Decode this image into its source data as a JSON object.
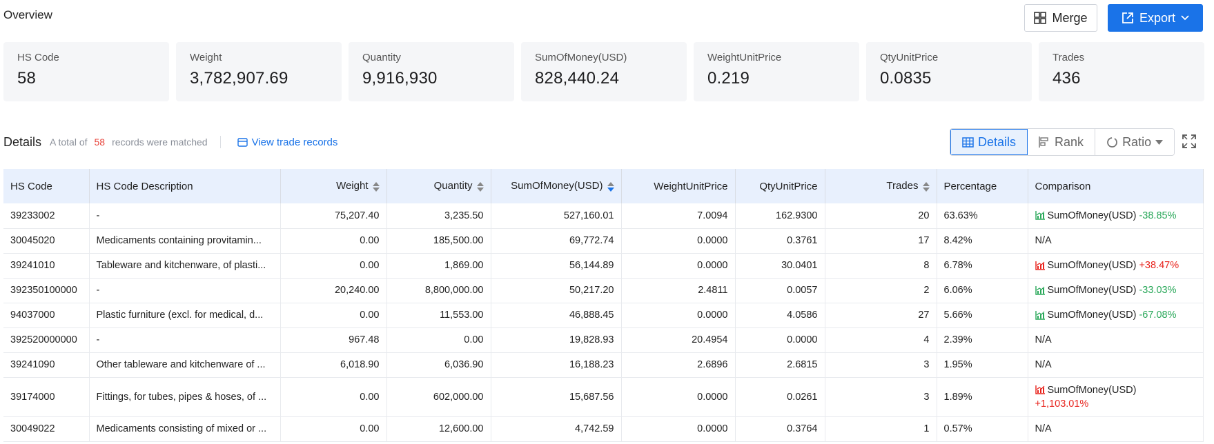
{
  "header": {
    "title": "Overview",
    "merge_label": "Merge",
    "export_label": "Export"
  },
  "stats": [
    {
      "label": "HS Code",
      "value": "58"
    },
    {
      "label": "Weight",
      "value": "3,782,907.69"
    },
    {
      "label": "Quantity",
      "value": "9,916,930"
    },
    {
      "label": "SumOfMoney(USD)",
      "value": "828,440.24"
    },
    {
      "label": "WeightUnitPrice",
      "value": "0.219"
    },
    {
      "label": "QtyUnitPrice",
      "value": "0.0835"
    },
    {
      "label": "Trades",
      "value": "436"
    }
  ],
  "details": {
    "title": "Details",
    "total_prefix": "A total of",
    "total_count": "58",
    "total_suffix": "records were matched",
    "view_link": "View trade records",
    "views": {
      "details": "Details",
      "rank": "Rank",
      "ratio": "Ratio"
    }
  },
  "colors": {
    "accent": "#1a73e8",
    "up": "#e8231c",
    "down": "#2aa85a",
    "header_bg": "#e8f0fd"
  },
  "table": {
    "columns": {
      "hs_code": "HS Code",
      "desc": "HS Code Description",
      "weight": "Weight",
      "quantity": "Quantity",
      "money": "SumOfMoney(USD)",
      "wup": "WeightUnitPrice",
      "qup": "QtyUnitPrice",
      "trades": "Trades",
      "pct": "Percentage",
      "cmp": "Comparison"
    },
    "rows": [
      {
        "hs_code": "39233002",
        "desc": "-",
        "weight": "75,207.40",
        "quantity": "3,235.50",
        "money": "527,160.01",
        "wup": "7.0094",
        "qup": "162.9300",
        "trades": "20",
        "pct": "63.63%",
        "cmp_label": "SumOfMoney(USD)",
        "cmp_value": "-38.85%",
        "cmp_dir": "down"
      },
      {
        "hs_code": "30045020",
        "desc": "Medicaments containing provitamin...",
        "weight": "0.00",
        "quantity": "185,500.00",
        "money": "69,772.74",
        "wup": "0.0000",
        "qup": "0.3761",
        "trades": "17",
        "pct": "8.42%",
        "cmp_label": "N/A",
        "cmp_value": "",
        "cmp_dir": "none"
      },
      {
        "hs_code": "39241010",
        "desc": "Tableware and kitchenware, of plasti...",
        "weight": "0.00",
        "quantity": "1,869.00",
        "money": "56,144.89",
        "wup": "0.0000",
        "qup": "30.0401",
        "trades": "8",
        "pct": "6.78%",
        "cmp_label": "SumOfMoney(USD)",
        "cmp_value": "+38.47%",
        "cmp_dir": "up"
      },
      {
        "hs_code": "392350100000",
        "desc": "-",
        "weight": "20,240.00",
        "quantity": "8,800,000.00",
        "money": "50,217.20",
        "wup": "2.4811",
        "qup": "0.0057",
        "trades": "2",
        "pct": "6.06%",
        "cmp_label": "SumOfMoney(USD)",
        "cmp_value": "-33.03%",
        "cmp_dir": "down"
      },
      {
        "hs_code": "94037000",
        "desc": "Plastic furniture (excl. for medical, d...",
        "weight": "0.00",
        "quantity": "11,553.00",
        "money": "46,888.45",
        "wup": "0.0000",
        "qup": "4.0586",
        "trades": "27",
        "pct": "5.66%",
        "cmp_label": "SumOfMoney(USD)",
        "cmp_value": "-67.08%",
        "cmp_dir": "down"
      },
      {
        "hs_code": "392520000000",
        "desc": "-",
        "weight": "967.48",
        "quantity": "0.00",
        "money": "19,828.93",
        "wup": "20.4954",
        "qup": "0.0000",
        "trades": "4",
        "pct": "2.39%",
        "cmp_label": "N/A",
        "cmp_value": "",
        "cmp_dir": "none"
      },
      {
        "hs_code": "39241090",
        "desc": "Other tableware and kitchenware of ...",
        "weight": "6,018.90",
        "quantity": "6,036.90",
        "money": "16,188.23",
        "wup": "2.6896",
        "qup": "2.6815",
        "trades": "3",
        "pct": "1.95%",
        "cmp_label": "N/A",
        "cmp_value": "",
        "cmp_dir": "none"
      },
      {
        "hs_code": "39174000",
        "desc": "Fittings, for tubes, pipes & hoses, of ...",
        "weight": "0.00",
        "quantity": "602,000.00",
        "money": "15,687.56",
        "wup": "0.0000",
        "qup": "0.0261",
        "trades": "3",
        "pct": "1.89%",
        "cmp_label": "SumOfMoney(USD)",
        "cmp_value": "+1,103.01%",
        "cmp_dir": "up",
        "wrap": true
      },
      {
        "hs_code": "30049022",
        "desc": "Medicaments consisting of mixed or ...",
        "weight": "0.00",
        "quantity": "12,600.00",
        "money": "4,742.59",
        "wup": "0.0000",
        "qup": "0.3764",
        "trades": "1",
        "pct": "0.57%",
        "cmp_label": "N/A",
        "cmp_value": "",
        "cmp_dir": "none"
      }
    ]
  }
}
